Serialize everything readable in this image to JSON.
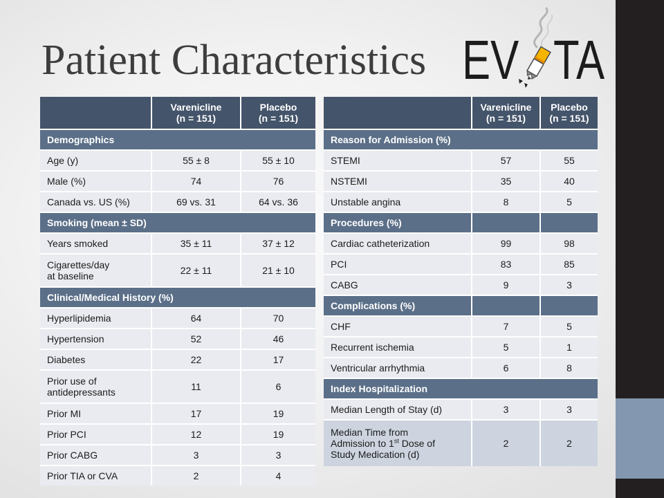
{
  "slide": {
    "title": "Patient Characteristics",
    "logo": {
      "left": "EV",
      "right": "TA"
    },
    "colors": {
      "header": "#44546a",
      "section": "#5b6f88",
      "row": "#e9ebf0",
      "row_alt": "#cdd4df",
      "side_bar": "#231f20",
      "side_accent": "#8497b0"
    }
  },
  "left_table": {
    "headers": [
      "",
      "Varenicline\n(n = 151)",
      "Placebo\n(n = 151)"
    ],
    "rows": [
      {
        "type": "section",
        "label": "Demographics"
      },
      {
        "type": "data",
        "label": "Age (y)",
        "values": [
          "55 ± 8",
          "55 ± 10"
        ]
      },
      {
        "type": "data",
        "label": "Male (%)",
        "values": [
          "74",
          "76"
        ]
      },
      {
        "type": "data",
        "label": "Canada vs. US (%)",
        "values": [
          "69 vs. 31",
          "64 vs. 36"
        ]
      },
      {
        "type": "section",
        "label": "Smoking (mean ± SD)"
      },
      {
        "type": "data",
        "label": "Years smoked",
        "values": [
          "35 ± 11",
          "37 ± 12"
        ]
      },
      {
        "type": "data",
        "label": "Cigarettes/day\nat baseline",
        "values": [
          "22 ± 11",
          "21 ± 10"
        ]
      },
      {
        "type": "section",
        "label": "Clinical/Medical History (%)"
      },
      {
        "type": "data",
        "label": "Hyperlipidemia",
        "values": [
          "64",
          "70"
        ]
      },
      {
        "type": "data",
        "label": "Hypertension",
        "values": [
          "52",
          "46"
        ]
      },
      {
        "type": "data",
        "label": "Diabetes",
        "values": [
          "22",
          "17"
        ]
      },
      {
        "type": "data",
        "label": "Prior use of\nantidepressants",
        "values": [
          "11",
          "6"
        ]
      },
      {
        "type": "data",
        "label": "Prior MI",
        "values": [
          "17",
          "19"
        ]
      },
      {
        "type": "data",
        "label": "Prior PCI",
        "values": [
          "12",
          "19"
        ]
      },
      {
        "type": "data",
        "label": "Prior CABG",
        "values": [
          "3",
          "3"
        ]
      },
      {
        "type": "data",
        "label": "Prior TIA or CVA",
        "values": [
          "2",
          "4"
        ]
      }
    ]
  },
  "right_table": {
    "headers": [
      "",
      "Varenicline\n(n = 151)",
      "Placebo\n(n = 151)"
    ],
    "rows": [
      {
        "type": "section",
        "label": "Reason for Admission (%)"
      },
      {
        "type": "data",
        "label": "STEMI",
        "values": [
          "57",
          "55"
        ]
      },
      {
        "type": "data",
        "label": "NSTEMI",
        "values": [
          "35",
          "40"
        ]
      },
      {
        "type": "data",
        "label": "Unstable angina",
        "values": [
          "8",
          "5"
        ]
      },
      {
        "type": "section",
        "label": "Procedures (%)",
        "values": [
          "",
          ""
        ]
      },
      {
        "type": "data",
        "label": "Cardiac catheterization",
        "values": [
          "99",
          "98"
        ]
      },
      {
        "type": "data",
        "label": "PCI",
        "values": [
          "83",
          "85"
        ]
      },
      {
        "type": "data",
        "label": "CABG",
        "values": [
          "9",
          "3"
        ]
      },
      {
        "type": "section",
        "label": "Complications (%)",
        "values": [
          "",
          ""
        ]
      },
      {
        "type": "data",
        "label": "CHF",
        "values": [
          "7",
          "5"
        ]
      },
      {
        "type": "data",
        "label": "Recurrent ischemia",
        "values": [
          "5",
          "1"
        ]
      },
      {
        "type": "data",
        "label": "Ventricular arrhythmia",
        "values": [
          "6",
          "8"
        ]
      },
      {
        "type": "section",
        "label": "Index Hospitalization"
      },
      {
        "type": "data",
        "label": "Median Length of Stay (d)",
        "values": [
          "3",
          "3"
        ]
      },
      {
        "type": "data",
        "label": "Median Time from\nAdmission to 1",
        "label_sup": "st",
        "label_after": " Dose of\nStudy Medication (d)",
        "values": [
          "2",
          "2"
        ]
      }
    ]
  }
}
